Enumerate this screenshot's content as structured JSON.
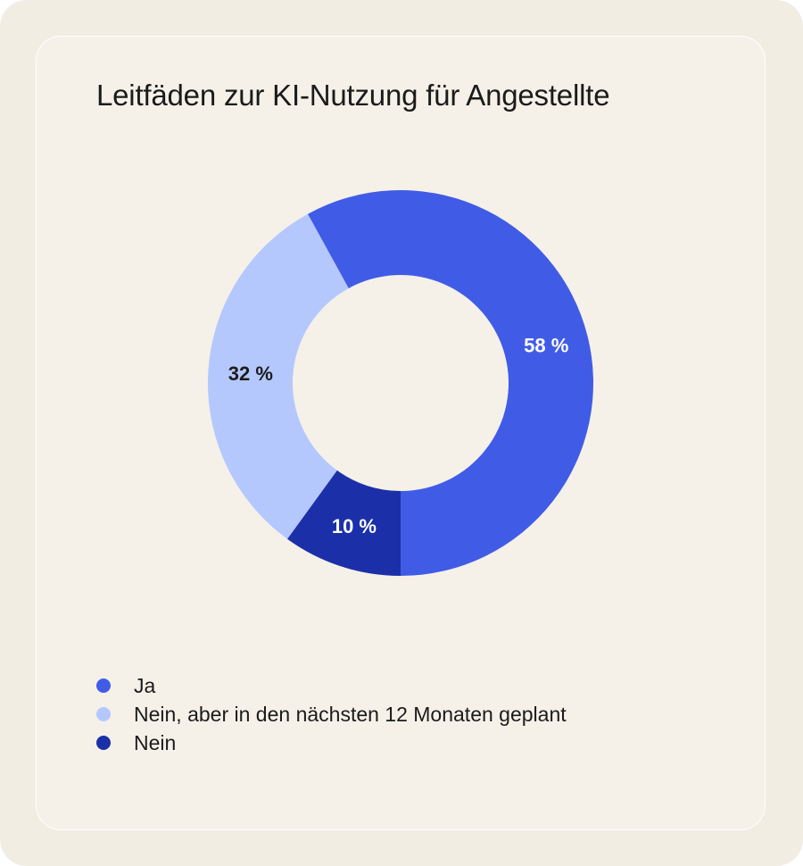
{
  "chart_data": {
    "type": "pie",
    "title": "Leitfäden zur KI-Nutzung für Angestellte",
    "categories": [
      "Ja",
      "Nein, aber in den nächsten 12 Monaten geplant",
      "Nein"
    ],
    "values": [
      58,
      32,
      10
    ],
    "data_labels": [
      "58 %",
      "32 %",
      "10 %"
    ],
    "colors": [
      "#405ce6",
      "#b5c8fd",
      "#1b30a8"
    ],
    "label_colors": [
      "#ffffff",
      "#1b1b1b",
      "#ffffff"
    ],
    "legend_position": "bottom-left"
  }
}
